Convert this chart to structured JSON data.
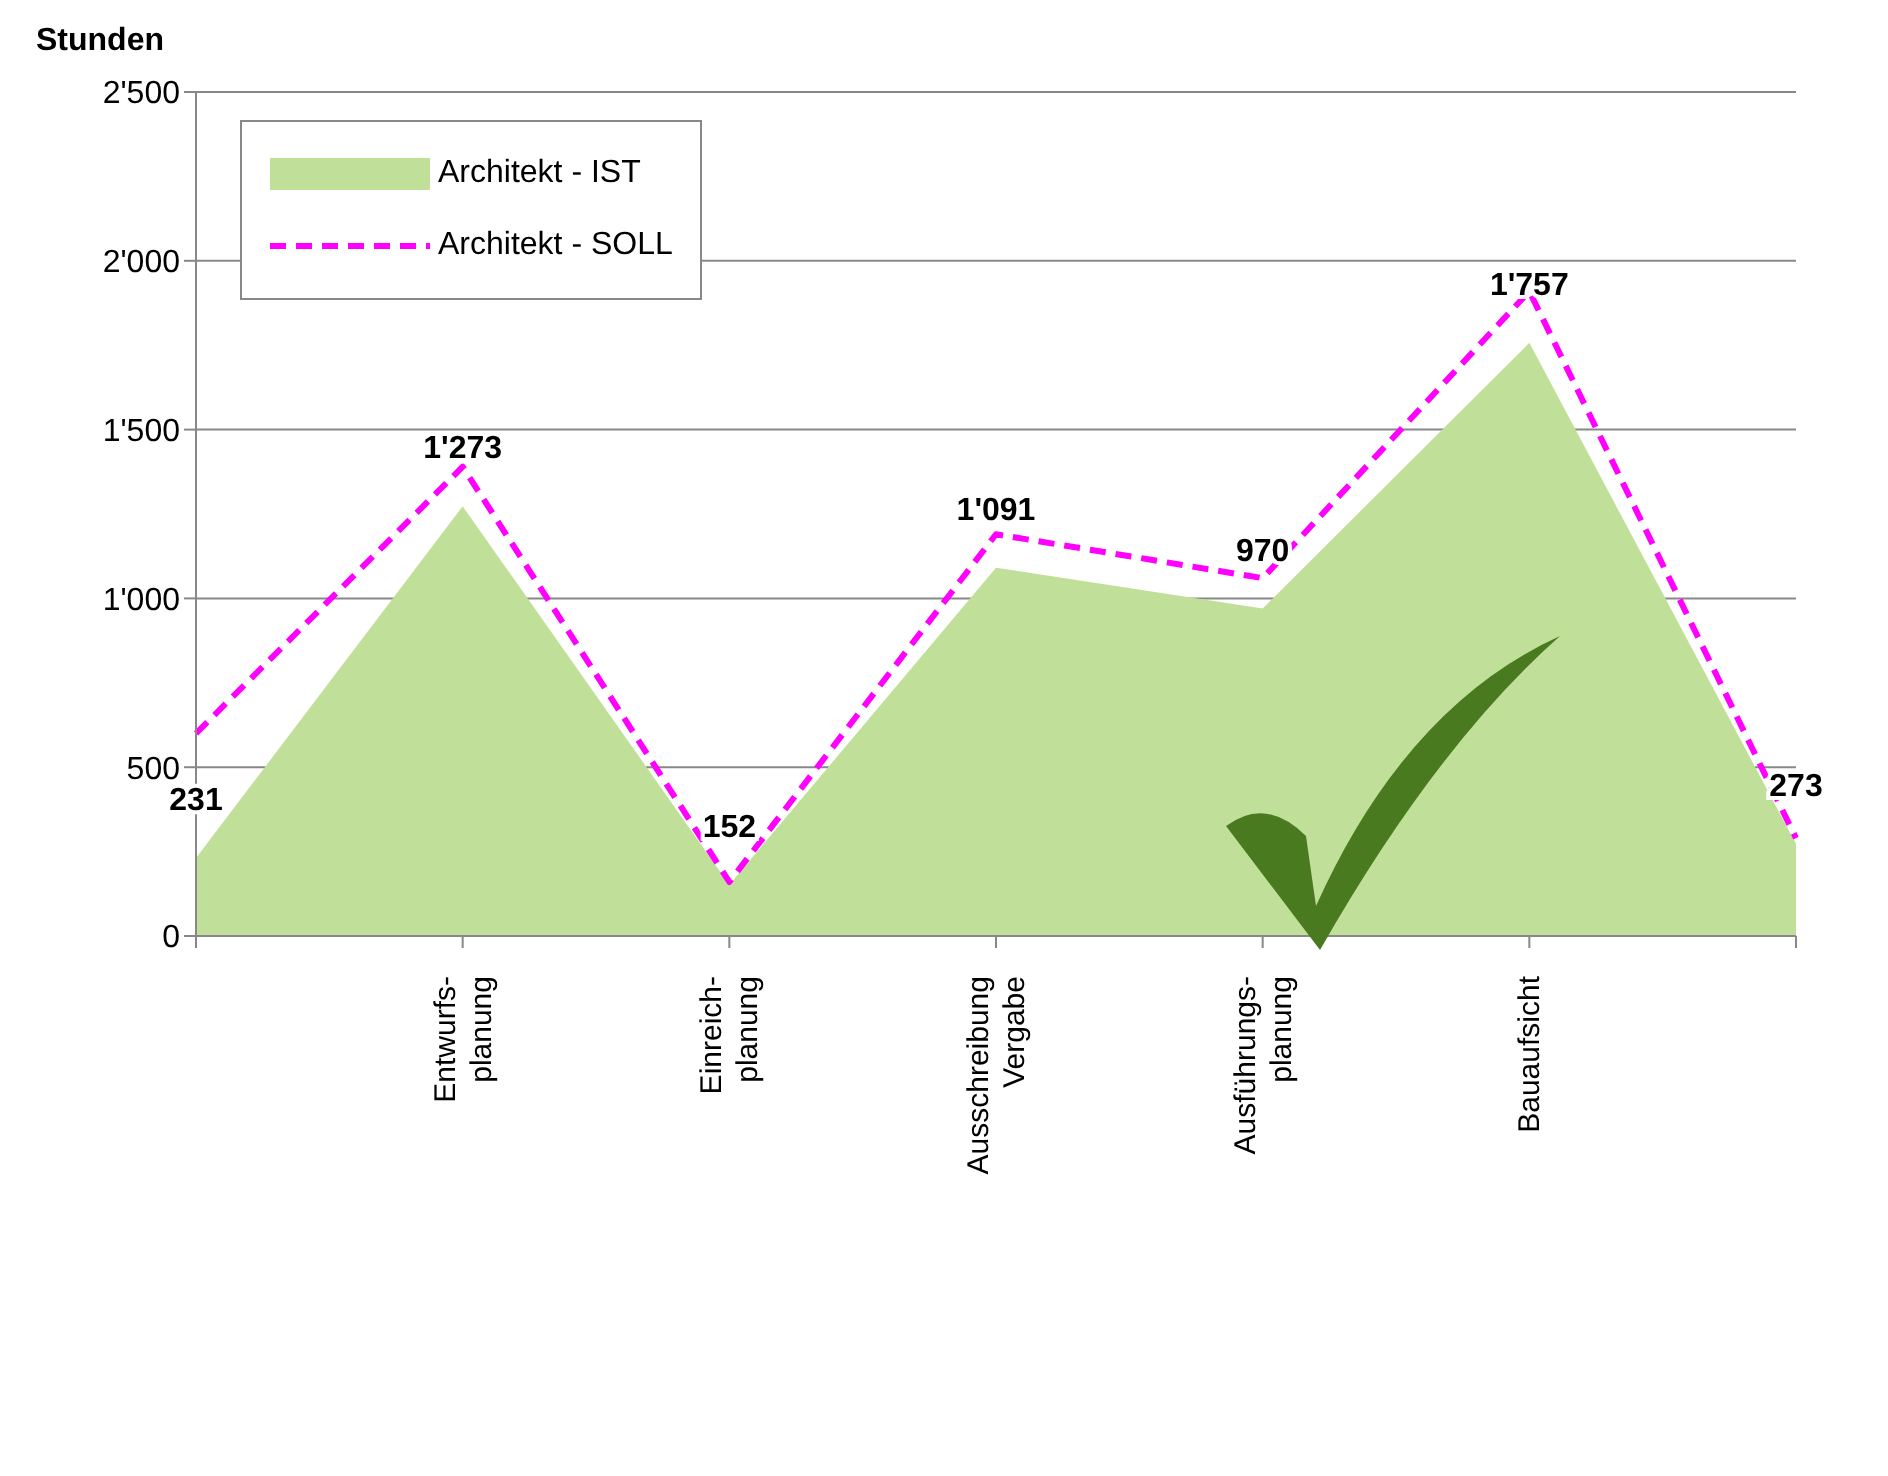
{
  "chart_data": {
    "type": "area",
    "ylabel": "Stunden",
    "categories": [
      null,
      "Entwurfs-\nplanung",
      "Einreich-\nplanung",
      "Ausschreibung\nVergabe",
      "Ausführungs-\nplanung",
      "Bauaufsicht",
      null
    ],
    "series": [
      {
        "name": "Architekt - IST",
        "color": "#c0e09a",
        "values": [
          231,
          1273,
          152,
          1091,
          970,
          1757,
          273
        ],
        "value_labels": [
          "231",
          "1'273",
          "152",
          "1'091",
          "970",
          "1'757",
          "273"
        ]
      },
      {
        "name": "Architekt - SOLL",
        "type": "line",
        "color": "#ff00ff",
        "line_style": "dashed",
        "values": [
          600,
          1390,
          160,
          1190,
          1060,
          1910,
          290
        ]
      }
    ],
    "ylim": [
      0,
      2500
    ],
    "yticks": [
      0,
      {
        "value": 500,
        "label": "500"
      },
      {
        "value": 1000,
        "label": "1'000"
      },
      {
        "value": 1500,
        "label": "1'500"
      },
      {
        "value": 2000,
        "label": "2'000"
      },
      {
        "value": 2500,
        "label": "2'500"
      }
    ],
    "grid": "y",
    "legend": "top left",
    "marker": "none"
  }
}
